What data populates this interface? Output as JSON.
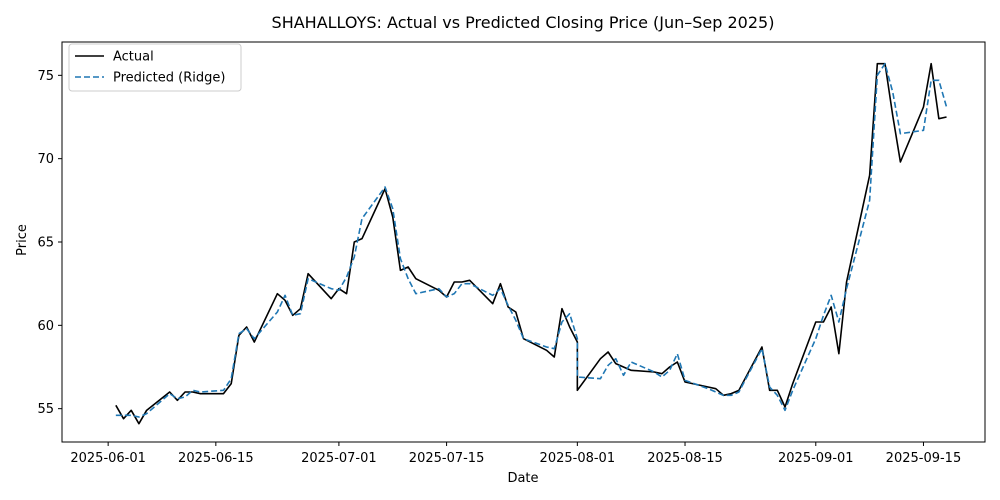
{
  "chart_data": {
    "type": "line",
    "title": "SHAHALLOYS: Actual vs Predicted Closing Price (Jun–Sep 2025)",
    "xlabel": "Date",
    "ylabel": "Price",
    "xlim": [
      "2025-05-26",
      "2025-09-23"
    ],
    "ylim": [
      53,
      77
    ],
    "x_ticks": [
      "2025-06-01",
      "2025-06-15",
      "2025-07-01",
      "2025-07-15",
      "2025-08-01",
      "2025-08-15",
      "2025-09-01",
      "2025-09-15"
    ],
    "y_ticks": [
      55,
      60,
      65,
      70,
      75
    ],
    "grid": false,
    "legend_position": "top-left",
    "series": [
      {
        "name": "Actual",
        "color": "#000000",
        "style": "solid",
        "points": [
          [
            "2025-06-02",
            55.2
          ],
          [
            "2025-06-03",
            54.4
          ],
          [
            "2025-06-04",
            54.9
          ],
          [
            "2025-06-05",
            54.1
          ],
          [
            "2025-06-06",
            54.9
          ],
          [
            "2025-06-09",
            56.0
          ],
          [
            "2025-06-10",
            55.5
          ],
          [
            "2025-06-11",
            56.0
          ],
          [
            "2025-06-12",
            56.0
          ],
          [
            "2025-06-13",
            55.9
          ],
          [
            "2025-06-16",
            55.9
          ],
          [
            "2025-06-17",
            56.5
          ],
          [
            "2025-06-18",
            59.4
          ],
          [
            "2025-06-19",
            59.9
          ],
          [
            "2025-06-20",
            59.0
          ],
          [
            "2025-06-23",
            61.9
          ],
          [
            "2025-06-24",
            61.5
          ],
          [
            "2025-06-25",
            60.6
          ],
          [
            "2025-06-26",
            61.0
          ],
          [
            "2025-06-27",
            63.1
          ],
          [
            "2025-06-30",
            61.6
          ],
          [
            "2025-07-01",
            62.2
          ],
          [
            "2025-07-02",
            61.9
          ],
          [
            "2025-07-03",
            65.0
          ],
          [
            "2025-07-04",
            65.2
          ],
          [
            "2025-07-07",
            68.2
          ],
          [
            "2025-07-08",
            66.5
          ],
          [
            "2025-07-09",
            63.3
          ],
          [
            "2025-07-10",
            63.5
          ],
          [
            "2025-07-11",
            62.8
          ],
          [
            "2025-07-14",
            62.1
          ],
          [
            "2025-07-15",
            61.7
          ],
          [
            "2025-07-16",
            62.6
          ],
          [
            "2025-07-17",
            62.6
          ],
          [
            "2025-07-18",
            62.7
          ],
          [
            "2025-07-21",
            61.3
          ],
          [
            "2025-07-22",
            62.5
          ],
          [
            "2025-07-23",
            61.1
          ],
          [
            "2025-07-24",
            60.8
          ],
          [
            "2025-07-25",
            59.2
          ],
          [
            "2025-07-28",
            58.5
          ],
          [
            "2025-07-29",
            58.1
          ],
          [
            "2025-07-30",
            61.0
          ],
          [
            "2025-07-31",
            59.9
          ],
          [
            "2025-08-01",
            59.0
          ],
          [
            "2025-08-01",
            56.1
          ],
          [
            "2025-08-04",
            58.0
          ],
          [
            "2025-08-05",
            58.4
          ],
          [
            "2025-08-06",
            57.7
          ],
          [
            "2025-08-07",
            57.5
          ],
          [
            "2025-08-08",
            57.3
          ],
          [
            "2025-08-11",
            57.2
          ],
          [
            "2025-08-12",
            57.1
          ],
          [
            "2025-08-13",
            57.5
          ],
          [
            "2025-08-14",
            57.8
          ],
          [
            "2025-08-15",
            56.6
          ],
          [
            "2025-08-18",
            56.3
          ],
          [
            "2025-08-19",
            56.2
          ],
          [
            "2025-08-20",
            55.8
          ],
          [
            "2025-08-21",
            55.9
          ],
          [
            "2025-08-22",
            56.1
          ],
          [
            "2025-08-25",
            58.7
          ],
          [
            "2025-08-26",
            56.1
          ],
          [
            "2025-08-27",
            56.1
          ],
          [
            "2025-08-28",
            55.1
          ],
          [
            "2025-08-29",
            56.5
          ],
          [
            "2025-09-01",
            60.2
          ],
          [
            "2025-09-02",
            60.2
          ],
          [
            "2025-09-03",
            61.1
          ],
          [
            "2025-09-04",
            58.3
          ],
          [
            "2025-09-05",
            62.6
          ],
          [
            "2025-09-08",
            69.0
          ],
          [
            "2025-09-09",
            75.7
          ],
          [
            "2025-09-10",
            75.7
          ],
          [
            "2025-09-11",
            72.6
          ],
          [
            "2025-09-12",
            69.8
          ],
          [
            "2025-09-15",
            73.1
          ],
          [
            "2025-09-16",
            75.7
          ],
          [
            "2025-09-17",
            72.4
          ],
          [
            "2025-09-18",
            72.5
          ]
        ]
      },
      {
        "name": "Predicted (Ridge)",
        "color": "#1f77b4",
        "style": "dashed",
        "points": [
          [
            "2025-06-02",
            54.6
          ],
          [
            "2025-06-03",
            54.6
          ],
          [
            "2025-06-04",
            54.6
          ],
          [
            "2025-06-05",
            54.5
          ],
          [
            "2025-06-06",
            54.7
          ],
          [
            "2025-06-09",
            55.9
          ],
          [
            "2025-06-10",
            55.6
          ],
          [
            "2025-06-11",
            55.7
          ],
          [
            "2025-06-12",
            56.1
          ],
          [
            "2025-06-13",
            56.0
          ],
          [
            "2025-06-16",
            56.1
          ],
          [
            "2025-06-17",
            56.8
          ],
          [
            "2025-06-18",
            59.5
          ],
          [
            "2025-06-19",
            59.8
          ],
          [
            "2025-06-20",
            59.2
          ],
          [
            "2025-06-23",
            60.8
          ],
          [
            "2025-06-24",
            61.8
          ],
          [
            "2025-06-25",
            60.6
          ],
          [
            "2025-06-26",
            60.7
          ],
          [
            "2025-06-27",
            62.8
          ],
          [
            "2025-06-30",
            62.2
          ],
          [
            "2025-07-01",
            62.1
          ],
          [
            "2025-07-02",
            62.9
          ],
          [
            "2025-07-03",
            64.1
          ],
          [
            "2025-07-04",
            66.4
          ],
          [
            "2025-07-07",
            68.3
          ],
          [
            "2025-07-08",
            67.0
          ],
          [
            "2025-07-09",
            64.0
          ],
          [
            "2025-07-10",
            62.8
          ],
          [
            "2025-07-11",
            61.9
          ],
          [
            "2025-07-14",
            62.2
          ],
          [
            "2025-07-15",
            61.7
          ],
          [
            "2025-07-16",
            61.9
          ],
          [
            "2025-07-17",
            62.5
          ],
          [
            "2025-07-18",
            62.5
          ],
          [
            "2025-07-21",
            61.8
          ],
          [
            "2025-07-22",
            62.2
          ],
          [
            "2025-07-23",
            61.2
          ],
          [
            "2025-07-24",
            60.3
          ],
          [
            "2025-07-25",
            59.2
          ],
          [
            "2025-07-28",
            58.7
          ],
          [
            "2025-07-29",
            58.6
          ],
          [
            "2025-07-30",
            60.2
          ],
          [
            "2025-07-31",
            60.7
          ],
          [
            "2025-08-01",
            59.2
          ],
          [
            "2025-08-01",
            56.9
          ],
          [
            "2025-08-04",
            56.8
          ],
          [
            "2025-08-05",
            57.6
          ],
          [
            "2025-08-06",
            58.0
          ],
          [
            "2025-08-07",
            57.0
          ],
          [
            "2025-08-08",
            57.8
          ],
          [
            "2025-08-11",
            57.2
          ],
          [
            "2025-08-12",
            56.9
          ],
          [
            "2025-08-13",
            57.3
          ],
          [
            "2025-08-14",
            58.3
          ],
          [
            "2025-08-15",
            56.7
          ],
          [
            "2025-08-18",
            56.2
          ],
          [
            "2025-08-19",
            56.0
          ],
          [
            "2025-08-20",
            55.8
          ],
          [
            "2025-08-21",
            55.8
          ],
          [
            "2025-08-22",
            56.0
          ],
          [
            "2025-08-25",
            58.6
          ],
          [
            "2025-08-26",
            56.3
          ],
          [
            "2025-08-27",
            55.8
          ],
          [
            "2025-08-28",
            54.9
          ],
          [
            "2025-08-29",
            56.1
          ],
          [
            "2025-09-01",
            59.2
          ],
          [
            "2025-09-02",
            60.6
          ],
          [
            "2025-09-03",
            61.8
          ],
          [
            "2025-09-04",
            60.2
          ],
          [
            "2025-09-05",
            62.2
          ],
          [
            "2025-09-08",
            67.5
          ],
          [
            "2025-09-09",
            75.0
          ],
          [
            "2025-09-10",
            75.7
          ],
          [
            "2025-09-11",
            74.0
          ],
          [
            "2025-09-12",
            71.5
          ],
          [
            "2025-09-15",
            71.7
          ],
          [
            "2025-09-16",
            74.7
          ],
          [
            "2025-09-17",
            74.7
          ],
          [
            "2025-09-18",
            73.1
          ]
        ]
      }
    ]
  }
}
